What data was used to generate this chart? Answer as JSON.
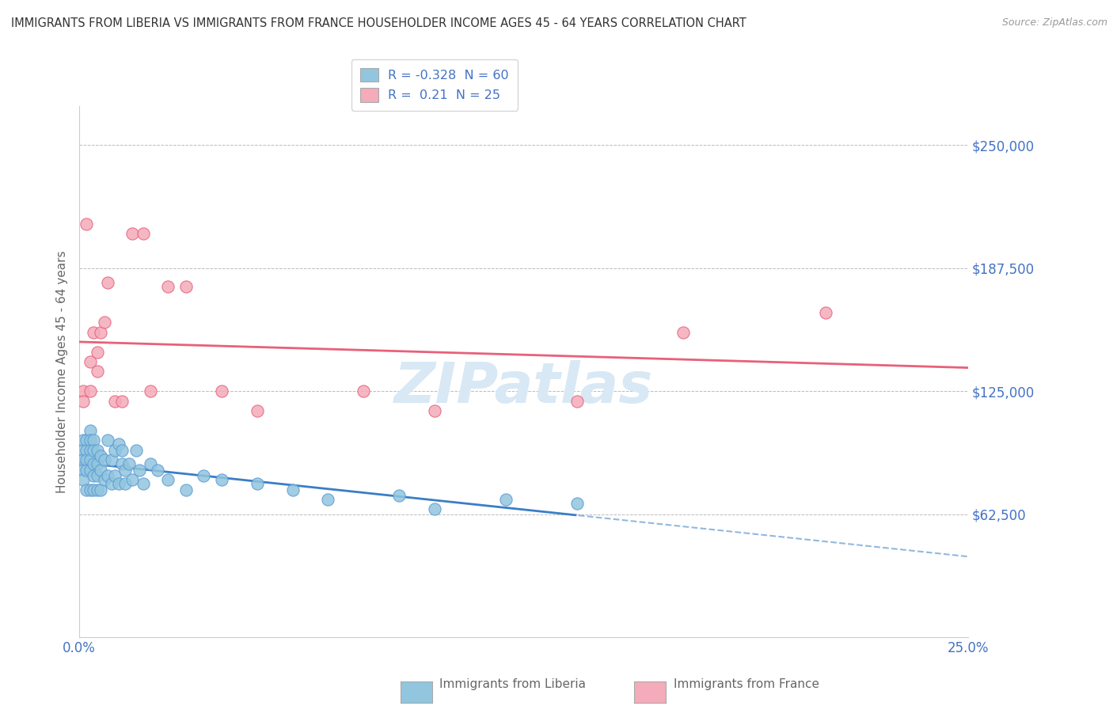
{
  "title": "IMMIGRANTS FROM LIBERIA VS IMMIGRANTS FROM FRANCE HOUSEHOLDER INCOME AGES 45 - 64 YEARS CORRELATION CHART",
  "source": "Source: ZipAtlas.com",
  "ylabel": "Householder Income Ages 45 - 64 years",
  "xlim": [
    0.0,
    0.25
  ],
  "ylim": [
    0,
    270000
  ],
  "ytick_vals": [
    62500,
    125000,
    187500,
    250000
  ],
  "ytick_labels": [
    "$62,500",
    "$125,000",
    "$187,500",
    "$250,000"
  ],
  "xtick_vals": [
    0.0,
    0.25
  ],
  "xtick_labels": [
    "0.0%",
    "25.0%"
  ],
  "liberia_R": -0.328,
  "liberia_N": 60,
  "france_R": 0.21,
  "france_N": 25,
  "liberia_color": "#92C5DE",
  "france_color": "#F4ABBA",
  "liberia_line_color": "#3A7EC6",
  "france_line_color": "#E8607A",
  "liberia_dot_edge": "#5B9BD5",
  "france_dot_edge": "#E8607A",
  "background_color": "#FFFFFF",
  "watermark_color": "#D8E8F5",
  "liberia_x": [
    0.001,
    0.001,
    0.001,
    0.001,
    0.001,
    0.002,
    0.002,
    0.002,
    0.002,
    0.002,
    0.003,
    0.003,
    0.003,
    0.003,
    0.003,
    0.003,
    0.004,
    0.004,
    0.004,
    0.004,
    0.004,
    0.005,
    0.005,
    0.005,
    0.005,
    0.006,
    0.006,
    0.006,
    0.007,
    0.007,
    0.008,
    0.008,
    0.009,
    0.009,
    0.01,
    0.01,
    0.011,
    0.011,
    0.012,
    0.012,
    0.013,
    0.013,
    0.014,
    0.015,
    0.016,
    0.017,
    0.018,
    0.02,
    0.022,
    0.025,
    0.03,
    0.035,
    0.04,
    0.05,
    0.06,
    0.07,
    0.09,
    0.1,
    0.12,
    0.14
  ],
  "liberia_y": [
    100000,
    95000,
    90000,
    85000,
    80000,
    100000,
    95000,
    90000,
    85000,
    75000,
    105000,
    100000,
    95000,
    90000,
    85000,
    75000,
    100000,
    95000,
    88000,
    82000,
    75000,
    95000,
    88000,
    82000,
    75000,
    92000,
    85000,
    75000,
    90000,
    80000,
    100000,
    82000,
    90000,
    78000,
    95000,
    82000,
    98000,
    78000,
    88000,
    95000,
    85000,
    78000,
    88000,
    80000,
    95000,
    85000,
    78000,
    88000,
    85000,
    80000,
    75000,
    82000,
    80000,
    78000,
    75000,
    70000,
    72000,
    65000,
    70000,
    68000
  ],
  "france_x": [
    0.001,
    0.001,
    0.002,
    0.003,
    0.003,
    0.004,
    0.005,
    0.005,
    0.006,
    0.007,
    0.008,
    0.01,
    0.012,
    0.015,
    0.018,
    0.02,
    0.025,
    0.03,
    0.04,
    0.05,
    0.08,
    0.1,
    0.14,
    0.17,
    0.21
  ],
  "france_y": [
    125000,
    120000,
    210000,
    125000,
    140000,
    155000,
    145000,
    135000,
    155000,
    160000,
    180000,
    120000,
    120000,
    205000,
    205000,
    125000,
    178000,
    178000,
    125000,
    115000,
    125000,
    115000,
    120000,
    155000,
    165000
  ]
}
